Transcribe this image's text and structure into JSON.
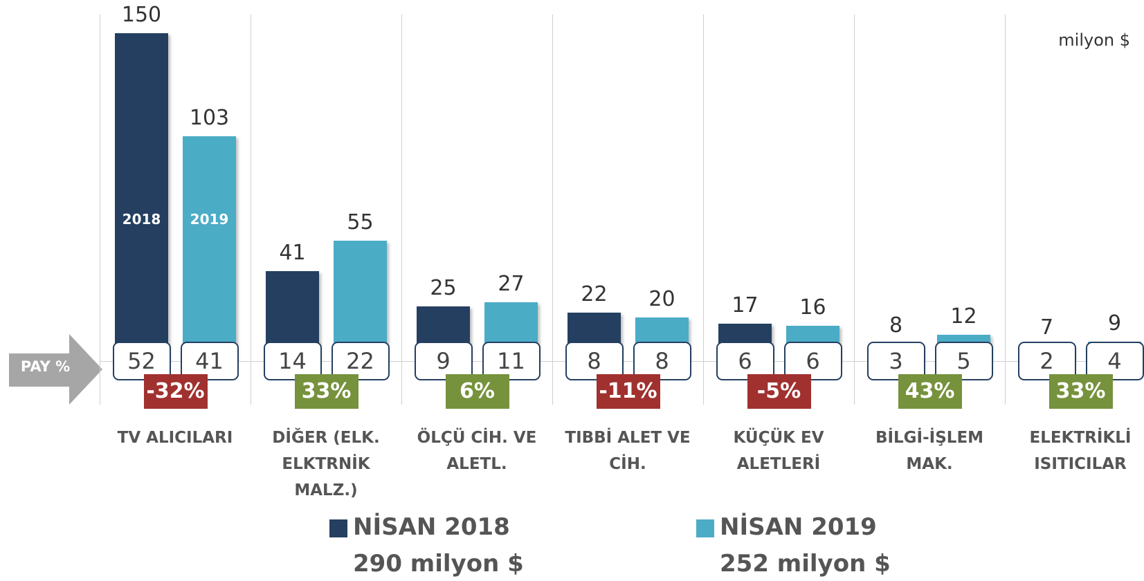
{
  "chart_data": {
    "type": "bar",
    "unit": "milyon $",
    "share_label": "PAY %",
    "categories": [
      "TV ALICILARI",
      "DİĞER (ELK. ELKTRNİK MALZ.)",
      "ÖLÇÜ CİH. VE ALETL.",
      "TIBBİ ALET VE CİH.",
      "KÜÇÜK EV ALETLERİ",
      "BİLGİ-İŞLEM MAK.",
      "ELEKTRİKLİ ISITICILAR"
    ],
    "bar_labels": [
      "2018",
      "2019"
    ],
    "series": [
      {
        "name": "NİSAN 2018",
        "total": "290 milyon $",
        "color": "#243f60",
        "values": [
          150,
          41,
          25,
          22,
          17,
          8,
          7
        ],
        "shares": [
          52,
          14,
          9,
          8,
          6,
          3,
          2
        ]
      },
      {
        "name": "NİSAN 2019",
        "total": "252 milyon $",
        "color": "#4bacc6",
        "values": [
          103,
          55,
          27,
          20,
          16,
          12,
          9
        ],
        "shares": [
          41,
          22,
          11,
          8,
          6,
          5,
          4
        ]
      }
    ],
    "changes": {
      "values": [
        -32,
        33,
        6,
        -11,
        -5,
        43,
        33
      ],
      "value_labels": [
        "-32%",
        "33%",
        "6%",
        "-11%",
        "-5%",
        "43%",
        "33%"
      ],
      "colors": {
        "negative": "#a0312f",
        "positive": "#76923c"
      }
    }
  }
}
